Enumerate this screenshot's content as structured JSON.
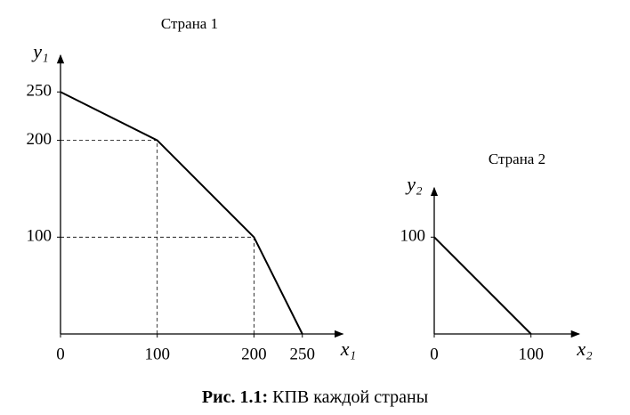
{
  "chart_data": [
    {
      "type": "line",
      "title": "Страна 1",
      "xlabel": "x₁",
      "ylabel": "y₁",
      "x": [
        0,
        100,
        200,
        250
      ],
      "values": [
        250,
        200,
        100,
        0
      ],
      "color": "#000000",
      "xlim": [
        0,
        292
      ],
      "ylim": [
        0,
        288
      ],
      "xticks": [
        0,
        100,
        200,
        250
      ],
      "yticks": [
        100,
        200,
        250
      ],
      "guides": true
    },
    {
      "type": "line",
      "title": "Страна 2",
      "xlabel": "x₂",
      "ylabel": "y₂",
      "x": [
        0,
        100
      ],
      "values": [
        100,
        0
      ],
      "color": "#000000",
      "xlim": [
        0,
        150
      ],
      "ylim": [
        0,
        151
      ],
      "xticks": [
        0,
        100
      ],
      "yticks": [
        100
      ],
      "guides": true
    }
  ],
  "caption": {
    "label": "Рис. 1.1:",
    "text": "КПВ каждой страны"
  }
}
